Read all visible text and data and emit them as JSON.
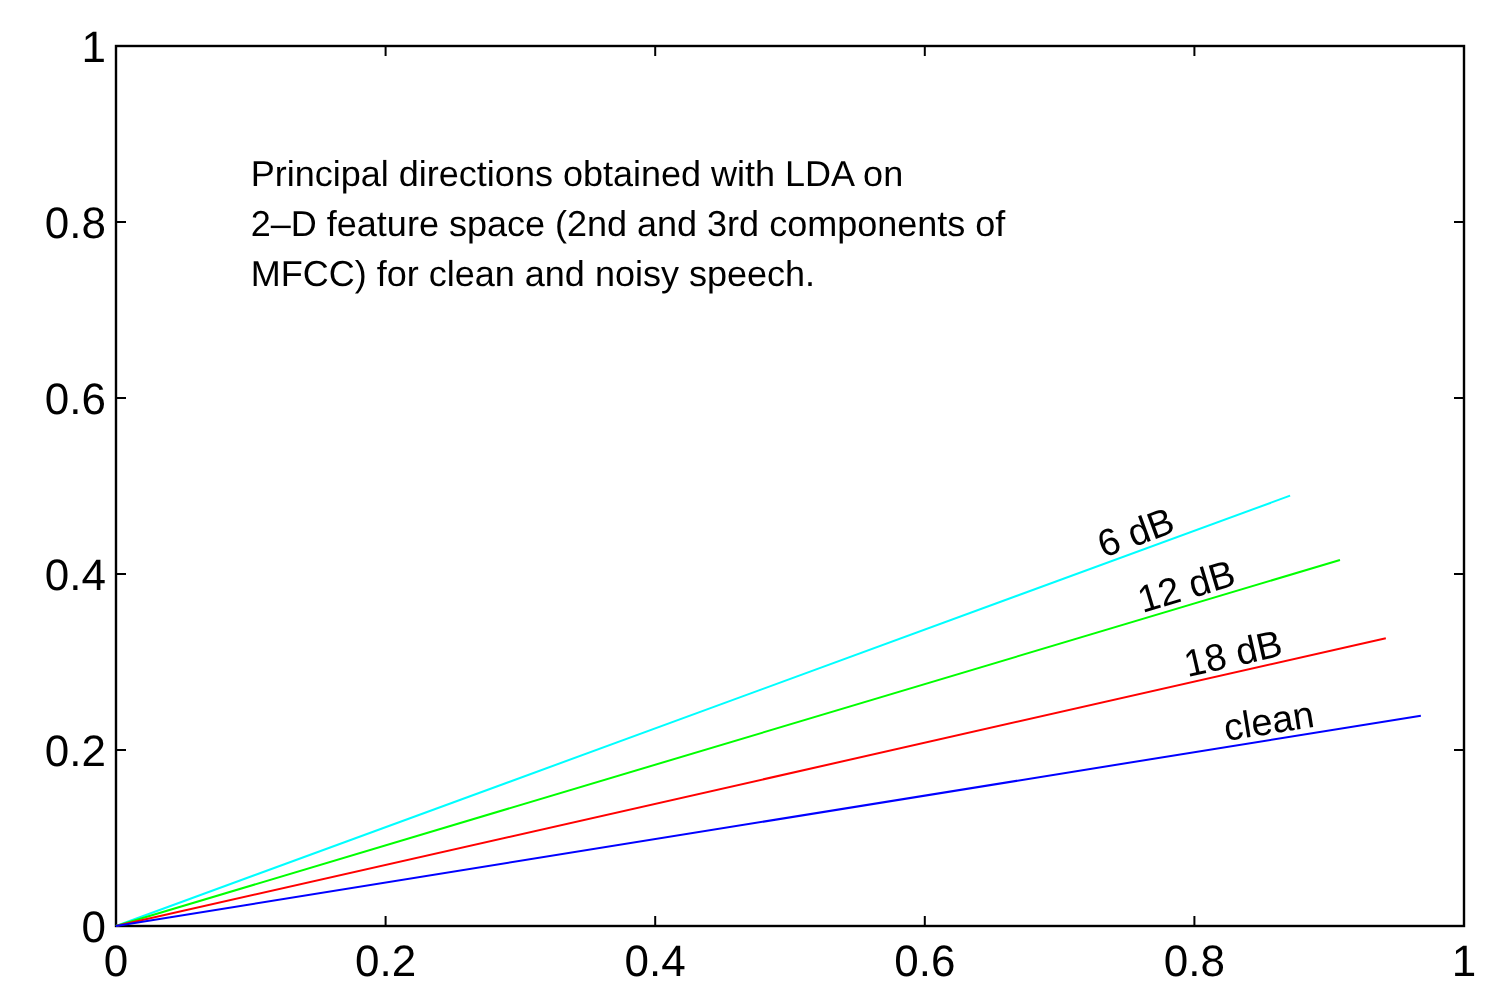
{
  "chart_data": {
    "type": "line",
    "xlim": [
      0,
      1
    ],
    "ylim": [
      0,
      1
    ],
    "xticks": [
      0,
      0.2,
      0.4,
      0.6,
      0.8,
      1
    ],
    "yticks": [
      0,
      0.2,
      0.4,
      0.6,
      0.8,
      1
    ],
    "grid": false,
    "marker": "none",
    "line_style": "solid",
    "annotations": [
      "Principal directions obtained with LDA on\n2–D feature space (2nd and 3rd components of\nMFCC) for clean and noisy speech."
    ],
    "series": [
      {
        "name": "6 dB",
        "color": "#00ffff",
        "x": [
          0,
          0.871
        ],
        "values": [
          0,
          0.489
        ]
      },
      {
        "name": "12 dB",
        "color": "#00ff00",
        "x": [
          0,
          0.908
        ],
        "values": [
          0,
          0.416
        ]
      },
      {
        "name": "18 dB",
        "color": "#ff0000",
        "x": [
          0,
          0.942
        ],
        "values": [
          0,
          0.327
        ]
      },
      {
        "name": "clean",
        "color": "#0000ff",
        "x": [
          0,
          0.968
        ],
        "values": [
          0,
          0.239
        ]
      }
    ]
  }
}
